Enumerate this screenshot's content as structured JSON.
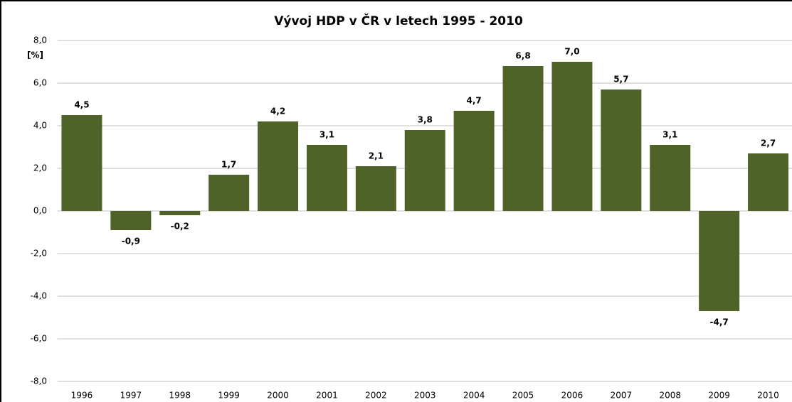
{
  "chart_data": {
    "type": "bar",
    "title": "Vývoj HDP v ČR v letech 1995 - 2010",
    "y_label": "[%]",
    "categories": [
      "1996",
      "1997",
      "1998",
      "1999",
      "2000",
      "2001",
      "2002",
      "2003",
      "2004",
      "2005",
      "2006",
      "2007",
      "2008",
      "2009",
      "2010"
    ],
    "values": [
      4.5,
      -0.9,
      -0.2,
      1.7,
      4.2,
      3.1,
      2.1,
      3.8,
      4.7,
      6.8,
      7.0,
      5.7,
      3.1,
      -4.7,
      2.7
    ],
    "value_labels": [
      "4,5",
      "-0,9",
      "-0,2",
      "1,7",
      "4,2",
      "3,1",
      "2,1",
      "3,8",
      "4,7",
      "6,8",
      "7,0",
      "5,7",
      "3,1",
      "-4,7",
      "2,7"
    ],
    "color": "#4f6228",
    "ylim": [
      -8,
      8
    ],
    "yticks": [
      {
        "value": -8,
        "label": "-8,0"
      },
      {
        "value": -6,
        "label": "-6,0"
      },
      {
        "value": -4,
        "label": "-4,0"
      },
      {
        "value": -2,
        "label": "-2,0"
      },
      {
        "value": 0,
        "label": "0,0"
      },
      {
        "value": 2,
        "label": "2,0"
      },
      {
        "value": 4,
        "label": "4,0"
      },
      {
        "value": 6,
        "label": "6,0"
      },
      {
        "value": 8,
        "label": "8,0"
      }
    ],
    "grid": true
  }
}
